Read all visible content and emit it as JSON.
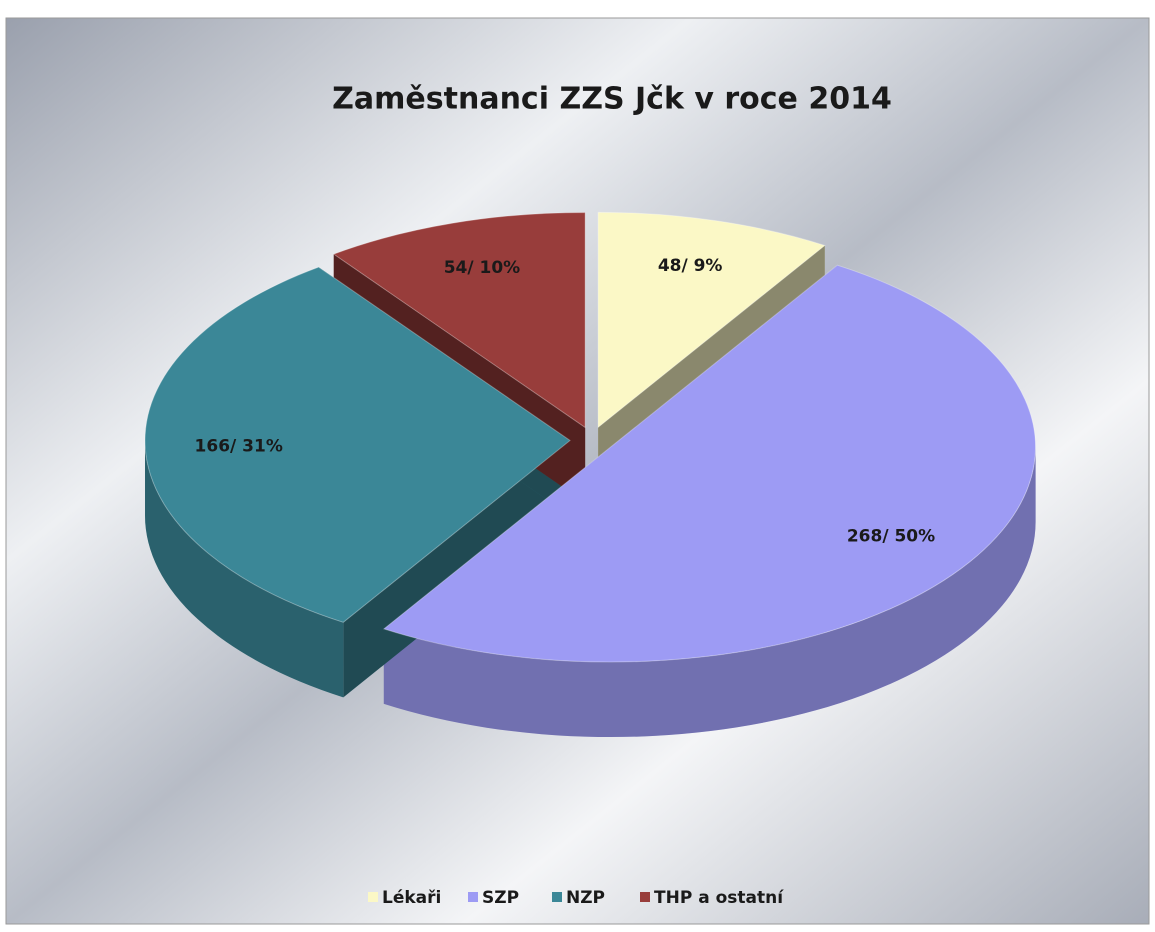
{
  "chart_data": {
    "type": "pie3d",
    "title": "Zaměstnanci ZZS Jčk v roce 2014",
    "categories": [
      "Lékaři",
      "SZP",
      "NZP",
      "THP a ostatní"
    ],
    "values": [
      48,
      268,
      166,
      54
    ],
    "value_labels": [
      "48/ 9%",
      "268/ 50%",
      "166/ 31%",
      "54/ 10%"
    ],
    "colors": [
      "#fbf8c6",
      "#9d9bf4",
      "#3b8797",
      "#983d3b"
    ],
    "legend": "bottom"
  }
}
